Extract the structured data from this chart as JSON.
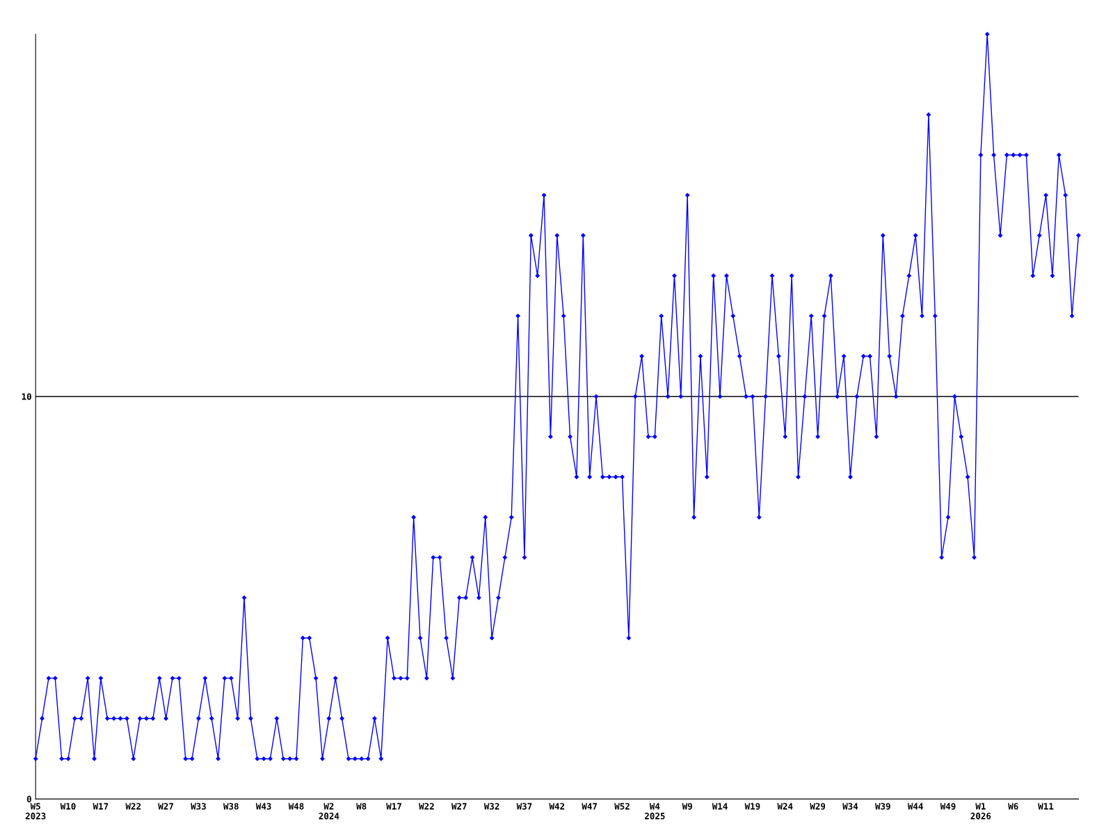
{
  "chart_data": {
    "type": "line",
    "categories": [
      "W5\n2023",
      null,
      null,
      null,
      null,
      "W10",
      null,
      null,
      null,
      null,
      "W17",
      null,
      null,
      null,
      null,
      "W22",
      null,
      null,
      null,
      null,
      "W27",
      null,
      null,
      null,
      null,
      "W33",
      null,
      null,
      null,
      null,
      "W38",
      null,
      null,
      null,
      null,
      "W43",
      null,
      null,
      null,
      null,
      "W48",
      null,
      null,
      null,
      null,
      "W2\n2024",
      null,
      null,
      null,
      null,
      "W8",
      null,
      null,
      null,
      null,
      "W17",
      null,
      null,
      null,
      null,
      "W22",
      null,
      null,
      null,
      null,
      "W27",
      null,
      null,
      null,
      null,
      "W32",
      null,
      null,
      null,
      null,
      "W37",
      null,
      null,
      null,
      null,
      "W42",
      null,
      null,
      null,
      null,
      "W47",
      null,
      null,
      null,
      null,
      "W52",
      null,
      null,
      null,
      null,
      "W4\n2025",
      null,
      null,
      null,
      null,
      "W9",
      null,
      null,
      null,
      null,
      "W14",
      null,
      null,
      null,
      null,
      "W19",
      null,
      null,
      null,
      null,
      "W24",
      null,
      null,
      null,
      null,
      "W29",
      null,
      null,
      null,
      null,
      "W34",
      null,
      null,
      null,
      null,
      "W39",
      null,
      null,
      null,
      null,
      "W44",
      null,
      null,
      null,
      null,
      "W49",
      null,
      null,
      null,
      null,
      "W1\n2026",
      null,
      null,
      null,
      null,
      "W6",
      null,
      null,
      null,
      null,
      "W11",
      null,
      null,
      null,
      null,
      null
    ],
    "series": [
      {
        "color": "#0000ff",
        "values": [
          1,
          2,
          3,
          3,
          1,
          1,
          2,
          2,
          3,
          1,
          3,
          2,
          2,
          2,
          2,
          1,
          2,
          2,
          2,
          3,
          2,
          3,
          3,
          1,
          1,
          2,
          3,
          2,
          1,
          3,
          3,
          2,
          5,
          2,
          1,
          1,
          1,
          2,
          1,
          1,
          1,
          4,
          4,
          3,
          1,
          2,
          3,
          2,
          1,
          1,
          1,
          1,
          2,
          1,
          4,
          3,
          3,
          3,
          7,
          4,
          3,
          6,
          6,
          4,
          3,
          5,
          5,
          6,
          5,
          7,
          4,
          5,
          6,
          7,
          12,
          6,
          14,
          13,
          15,
          9,
          14,
          12,
          9,
          8,
          14,
          8,
          10,
          8,
          8,
          8,
          8,
          4,
          10,
          11,
          9,
          9,
          12,
          10,
          13,
          10,
          15,
          7,
          11,
          8,
          13,
          10,
          13,
          12,
          11,
          10,
          10,
          7,
          10,
          13,
          11,
          9,
          13,
          8,
          10,
          12,
          9,
          12,
          13,
          10,
          11,
          8,
          10,
          11,
          11,
          9,
          14,
          11,
          10,
          12,
          13,
          14,
          12,
          17,
          12,
          6,
          7,
          10,
          9,
          8,
          6,
          16,
          19,
          16,
          14,
          16,
          16,
          16,
          16,
          13,
          14,
          15,
          13,
          16,
          15,
          12,
          14
        ]
      }
    ],
    "ylim": [
      0,
      19
    ],
    "yticks": [
      0,
      10
    ],
    "grid": "y",
    "marker": "diamond",
    "line_style": "solid"
  }
}
